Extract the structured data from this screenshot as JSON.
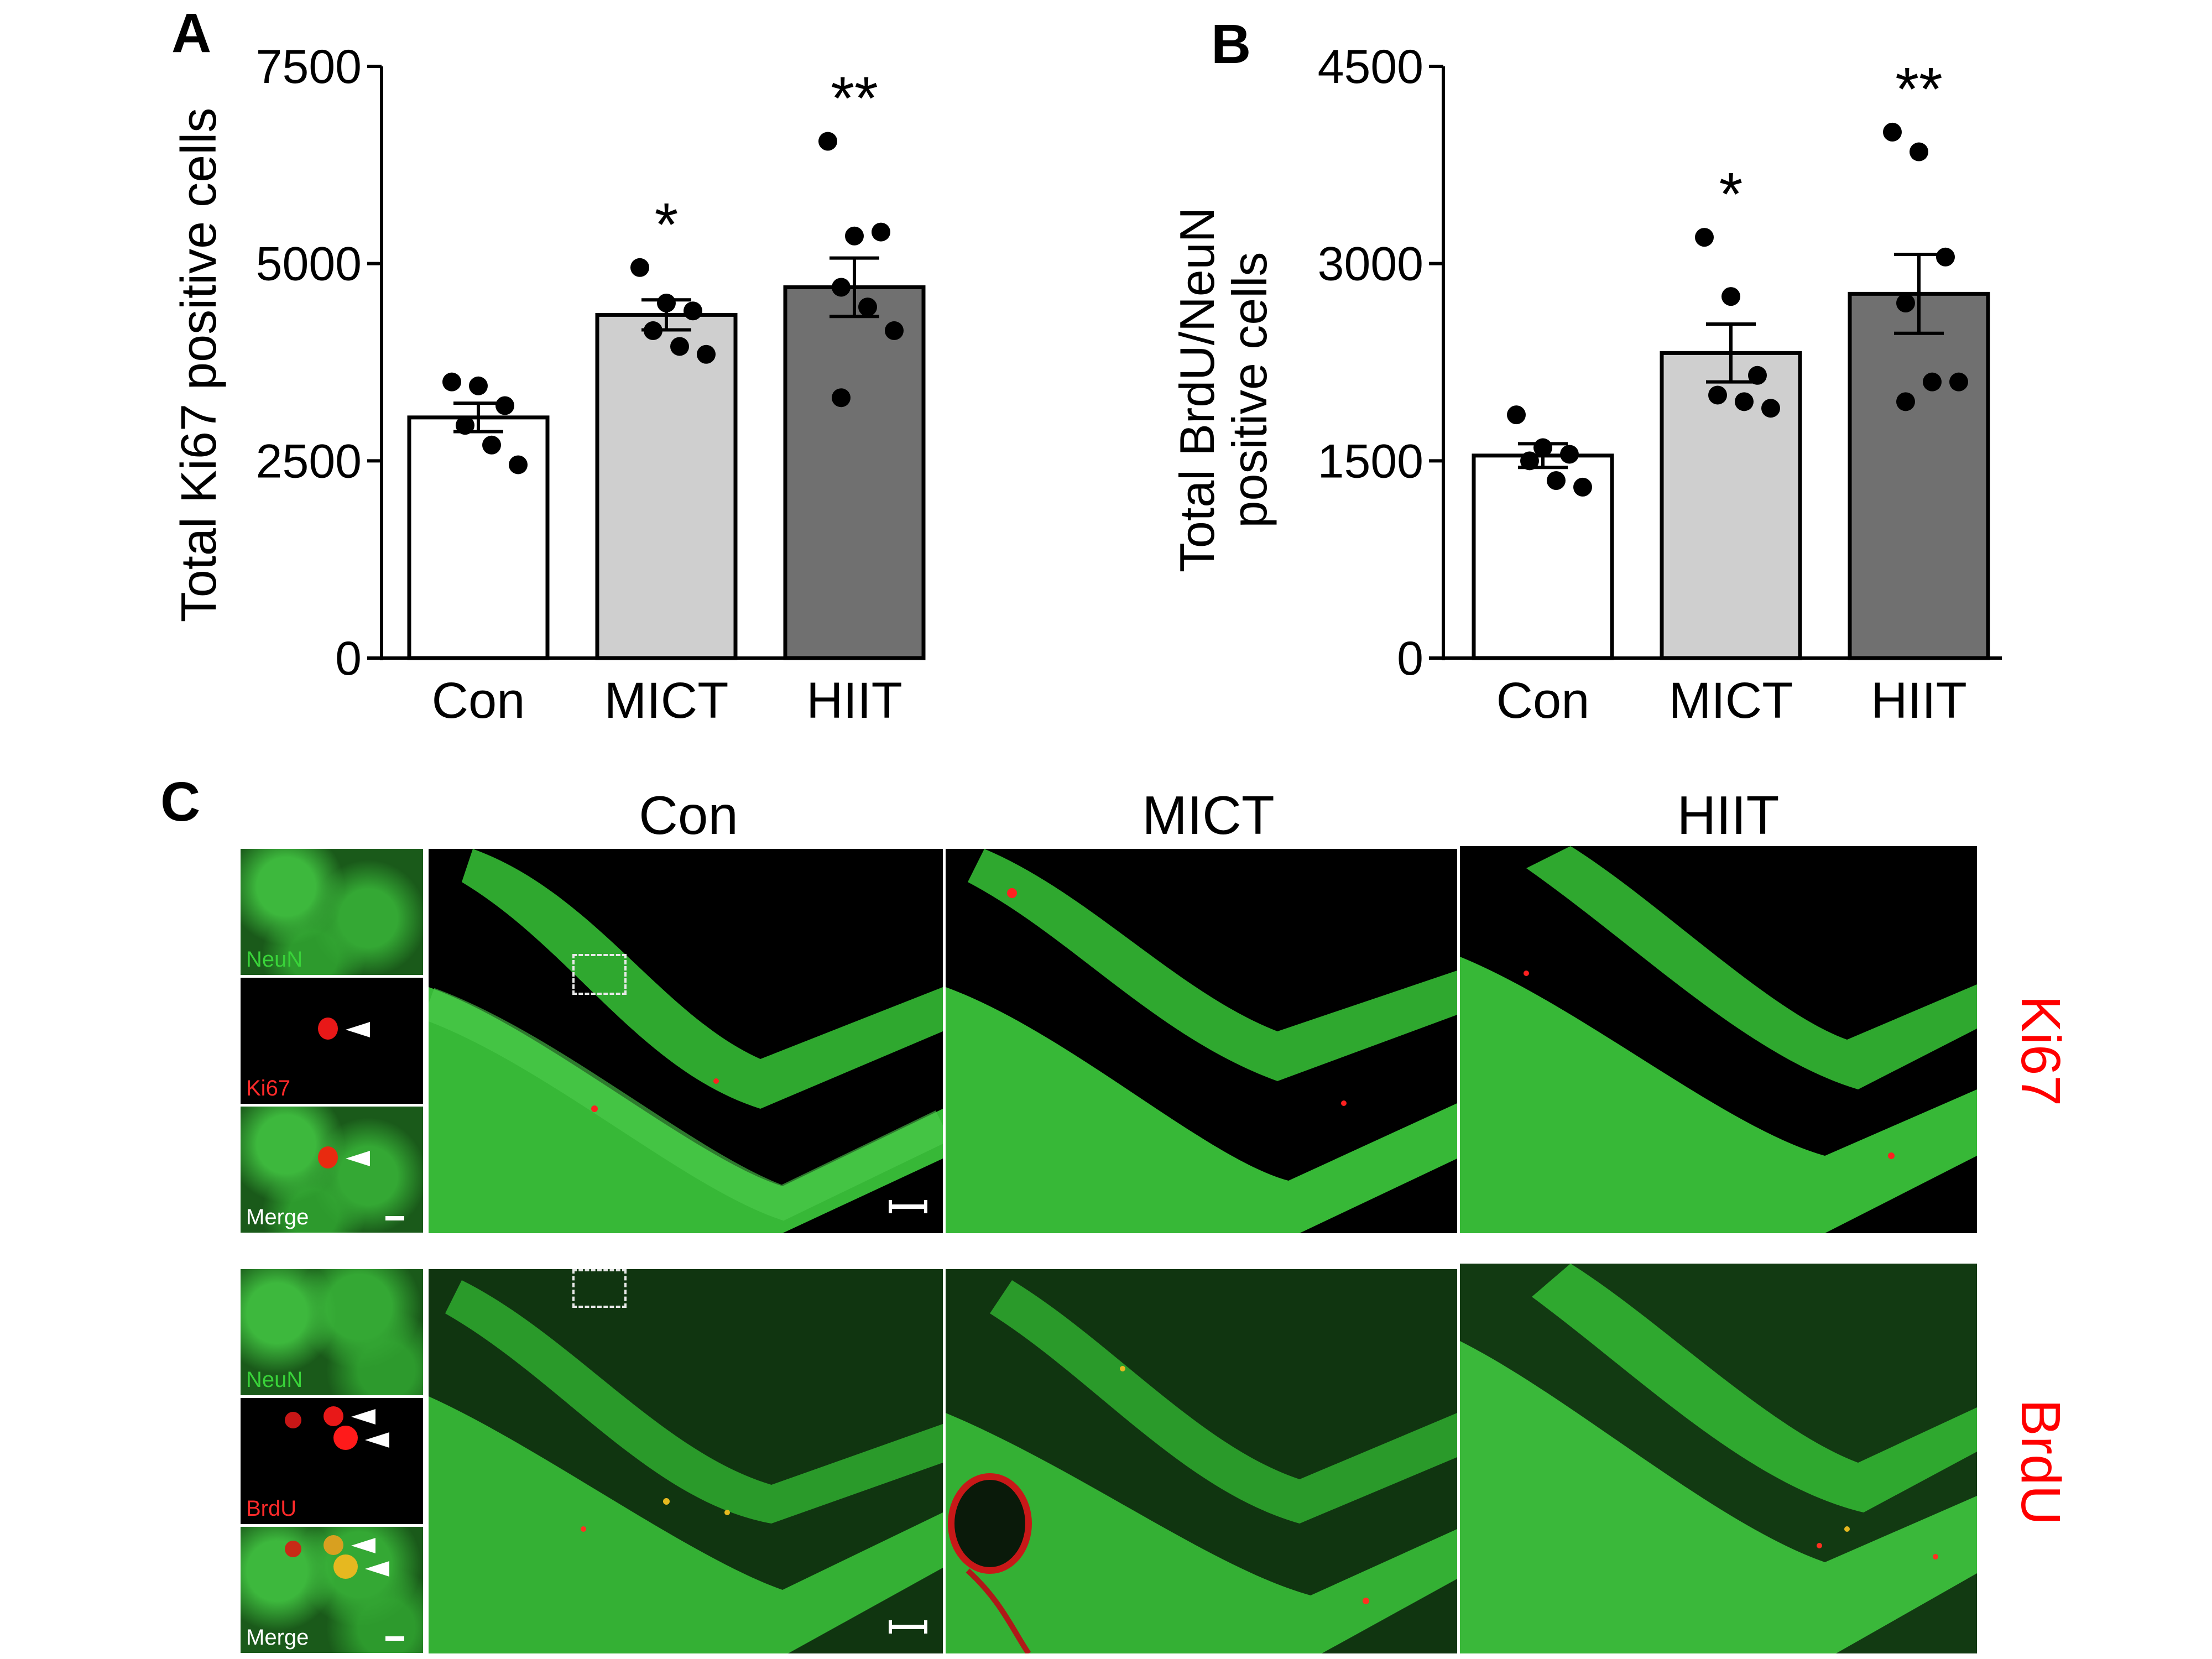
{
  "panels": {
    "A": "A",
    "B": "B",
    "C": "C"
  },
  "chart_data": [
    {
      "type": "bar",
      "panel": "A",
      "categories": [
        "Con",
        "MICT",
        "HIIT"
      ],
      "values": [
        3050,
        4350,
        4700
      ],
      "sem": [
        180,
        190,
        370
      ],
      "points": [
        [
          3500,
          3450,
          3200,
          2950,
          2700,
          2450
        ],
        [
          4950,
          4500,
          4400,
          4150,
          3950,
          3850
        ],
        [
          6550,
          5350,
          5400,
          4700,
          4450,
          4150,
          3300
        ]
      ],
      "significance": [
        "",
        "*",
        "**"
      ],
      "ylabel": "Total Ki67 positive cells",
      "yticks": [
        0,
        2500,
        5000,
        7500
      ],
      "ylim": [
        0,
        7500
      ],
      "bar_colors": [
        "#ffffff",
        "#cfcfcf",
        "#707070"
      ]
    },
    {
      "type": "bar",
      "panel": "B",
      "categories": [
        "Con",
        "MICT",
        "HIIT"
      ],
      "values": [
        1540,
        2320,
        2770
      ],
      "sem": [
        90,
        220,
        300
      ],
      "points": [
        [
          1850,
          1600,
          1550,
          1500,
          1350,
          1300
        ],
        [
          3200,
          2750,
          2150,
          2000,
          1950,
          1900
        ],
        [
          4000,
          3850,
          3050,
          2700,
          2100,
          2100,
          1950
        ]
      ],
      "significance": [
        "",
        "*",
        "**"
      ],
      "ylabel_lines": [
        "Total BrdU/NeuN",
        "positive cells"
      ],
      "yticks": [
        0,
        1500,
        3000,
        4500
      ],
      "ylim": [
        0,
        4500
      ],
      "bar_colors": [
        "#ffffff",
        "#cfcfcf",
        "#707070"
      ]
    }
  ],
  "micrographs": {
    "column_labels": [
      "Con",
      "MICT",
      "HIIT"
    ],
    "row_labels": [
      "Ki67",
      "BrdU"
    ],
    "row_label_color": "#ff0000",
    "ki67_insets": [
      "NeuN",
      "Ki67",
      "Merge"
    ],
    "brdu_insets": [
      "NeuN",
      "BrdU",
      "Merge"
    ],
    "inset_label_colors": {
      "NeuN": "#39d339",
      "Ki67": "#ff2a2a",
      "BrdU": "#ff2a2a",
      "Merge": "#ffffff"
    },
    "stain_colors": {
      "neun": "#3cc83c",
      "marker": "#ff1a1a",
      "merge": "#e0b020"
    }
  }
}
